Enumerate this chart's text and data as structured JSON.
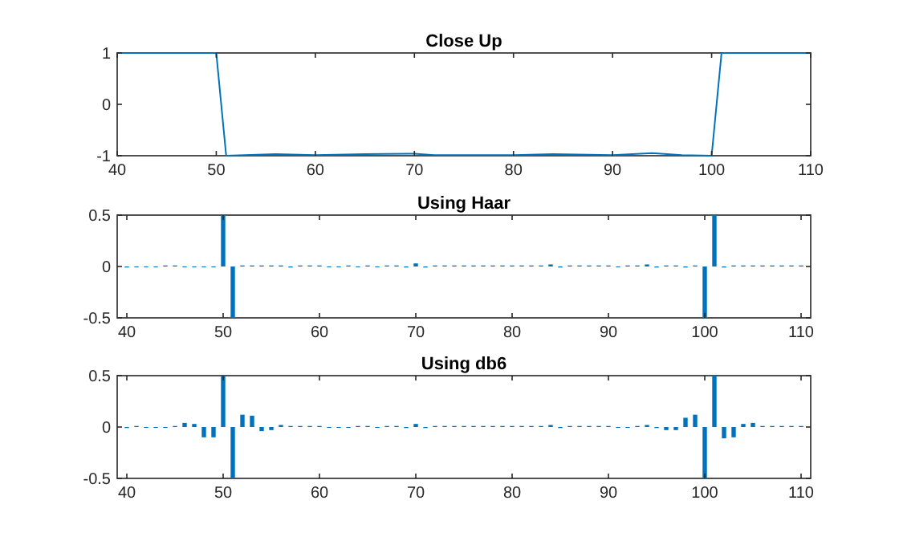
{
  "chart_data": [
    {
      "type": "line",
      "title": "Close Up",
      "x": [
        40,
        45,
        50,
        51,
        56,
        60,
        65,
        70,
        72,
        80,
        84,
        90,
        94,
        97,
        100,
        101,
        105,
        110
      ],
      "values": [
        1,
        1,
        1,
        -1,
        -0.97,
        -0.99,
        -0.97,
        -0.96,
        -0.99,
        -0.99,
        -0.97,
        -0.99,
        -0.95,
        -0.99,
        -1,
        1,
        1,
        1
      ],
      "color": "#0072bd",
      "xlim": [
        40,
        110
      ],
      "ylim": [
        -1,
        1
      ],
      "xticks": [
        40,
        50,
        60,
        70,
        80,
        90,
        100,
        110
      ],
      "yticks": [
        -1,
        0,
        1
      ]
    },
    {
      "type": "bar",
      "title": "Using Haar",
      "x": [
        40,
        41,
        42,
        43,
        44,
        45,
        46,
        47,
        48,
        49,
        50,
        51,
        52,
        53,
        54,
        55,
        56,
        57,
        58,
        59,
        60,
        61,
        62,
        63,
        64,
        65,
        66,
        67,
        68,
        69,
        70,
        71,
        72,
        73,
        74,
        75,
        76,
        77,
        78,
        79,
        80,
        81,
        82,
        83,
        84,
        85,
        86,
        87,
        88,
        89,
        90,
        91,
        92,
        93,
        94,
        95,
        96,
        97,
        98,
        99,
        100,
        101,
        102,
        103,
        104,
        105,
        106,
        107,
        108,
        109,
        110
      ],
      "values": [
        -0.01,
        0,
        0,
        0,
        0.01,
        0.01,
        0,
        0,
        0,
        0,
        0.5,
        -0.5,
        0.01,
        0.01,
        0.01,
        0.01,
        0.01,
        -0.01,
        0.01,
        0.01,
        0.01,
        0,
        0,
        0.01,
        0,
        0.01,
        0,
        0.01,
        0.01,
        -0.01,
        0.03,
        -0.01,
        0.01,
        0.01,
        0.01,
        0.01,
        0.01,
        0.01,
        0.01,
        0.01,
        0.01,
        0.01,
        0.01,
        0.01,
        0.02,
        -0.01,
        0.01,
        0.01,
        0.01,
        0.01,
        0.01,
        0,
        0.01,
        0.01,
        0.02,
        -0.01,
        0.01,
        0.01,
        -0.01,
        0.01,
        -0.5,
        0.5,
        -0.01,
        0.01,
        0.01,
        0.01,
        0.01,
        0.01,
        0.01,
        0.01,
        0.01
      ],
      "color": "#0072bd",
      "xlim": [
        39,
        111
      ],
      "ylim": [
        -0.5,
        0.5
      ],
      "xticks": [
        40,
        50,
        60,
        70,
        80,
        90,
        100,
        110
      ],
      "yticks": [
        -0.5,
        0,
        0.5
      ]
    },
    {
      "type": "bar",
      "title": "Using db6",
      "x": [
        40,
        41,
        42,
        43,
        44,
        45,
        46,
        47,
        48,
        49,
        50,
        51,
        52,
        53,
        54,
        55,
        56,
        57,
        58,
        59,
        60,
        61,
        62,
        63,
        64,
        65,
        66,
        67,
        68,
        69,
        70,
        71,
        72,
        73,
        74,
        75,
        76,
        77,
        78,
        79,
        80,
        81,
        82,
        83,
        84,
        85,
        86,
        87,
        88,
        89,
        90,
        91,
        92,
        93,
        94,
        95,
        96,
        97,
        98,
        99,
        100,
        101,
        102,
        103,
        104,
        105,
        106,
        107,
        108,
        109,
        110
      ],
      "values": [
        -0.01,
        0.01,
        0,
        0,
        0,
        0.01,
        0.04,
        0.03,
        -0.1,
        -0.1,
        0.5,
        -0.5,
        0.12,
        0.11,
        -0.04,
        -0.03,
        0.02,
        0.01,
        0.01,
        0.01,
        0.01,
        0,
        0,
        0,
        0.01,
        0.01,
        0,
        0.01,
        0.01,
        -0.01,
        0.03,
        -0.01,
        0.01,
        0.01,
        0.01,
        0.01,
        0.01,
        0.01,
        0.01,
        0.01,
        0.01,
        0.01,
        0.01,
        0.01,
        0.02,
        -0.01,
        0.01,
        0.01,
        0.01,
        0.01,
        0.01,
        0,
        0,
        0.01,
        0.02,
        -0.01,
        -0.03,
        -0.03,
        0.09,
        0.12,
        -0.5,
        0.5,
        -0.11,
        -0.1,
        0.03,
        0.04,
        0.01,
        0.01,
        0.01,
        0.01,
        0.01
      ],
      "color": "#0072bd",
      "xlim": [
        39,
        111
      ],
      "ylim": [
        -0.5,
        0.5
      ],
      "xticks": [
        40,
        50,
        60,
        70,
        80,
        90,
        100,
        110
      ],
      "yticks": [
        -0.5,
        0,
        0.5
      ]
    }
  ]
}
